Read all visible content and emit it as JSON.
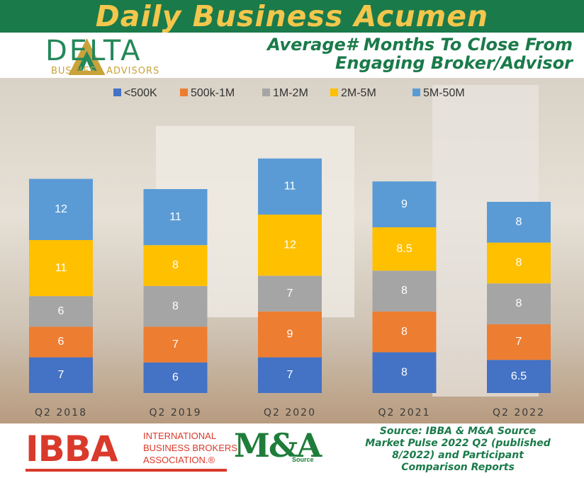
{
  "banner": {
    "title": "Daily Business Acumen"
  },
  "logo": {
    "name": "DELTA",
    "tagline": "BUSINESS ADVISORS"
  },
  "subtitle": {
    "line1": "Average# Months To Close From",
    "line2": "Engaging Broker/Advisor"
  },
  "footer": {
    "ibba_abbr": "IBBA",
    "ibba_name_line1": "INTERNATIONAL",
    "ibba_name_line2": "BUSINESS BROKERS",
    "ibba_name_line3": "ASSOCIATION.®",
    "ma_logo_text": "M&A",
    "ma_logo_sub": "Source",
    "source_line1": "Source: IBBA & M&A Source",
    "source_line2": "Market Pulse 2022 Q2 (published",
    "source_line3": "8/2022) and Participant",
    "source_line4": "Comparison Reports"
  },
  "colors": {
    "banner_bg": "#1a7a4a",
    "banner_text": "#f3c64c",
    "ibba_red": "#d93a2b",
    "ma_green": "#1f7d3a"
  },
  "chart_data": {
    "type": "bar",
    "stacked": true,
    "title": "Average# Months To Close From Engaging Broker/Advisor",
    "categories": [
      "Q2 2018",
      "Q2 2019",
      "Q2 2020",
      "Q2 2021",
      "Q2 2022"
    ],
    "series": [
      {
        "name": "<500K",
        "color": "#4472c4",
        "values": [
          7,
          6,
          7,
          8,
          6.5
        ]
      },
      {
        "name": "500k-1M",
        "color": "#ed7d31",
        "values": [
          6,
          7,
          9,
          8,
          7
        ]
      },
      {
        "name": "1M-2M",
        "color": "#a5a5a5",
        "values": [
          6,
          8,
          7,
          8,
          8
        ]
      },
      {
        "name": "2M-5M",
        "color": "#ffc000",
        "values": [
          11,
          8,
          12,
          8.5,
          8
        ]
      },
      {
        "name": "5M-50M",
        "color": "#5b9bd5",
        "values": [
          12,
          11,
          11,
          9,
          8
        ]
      }
    ],
    "legend": "top",
    "grid": false
  }
}
